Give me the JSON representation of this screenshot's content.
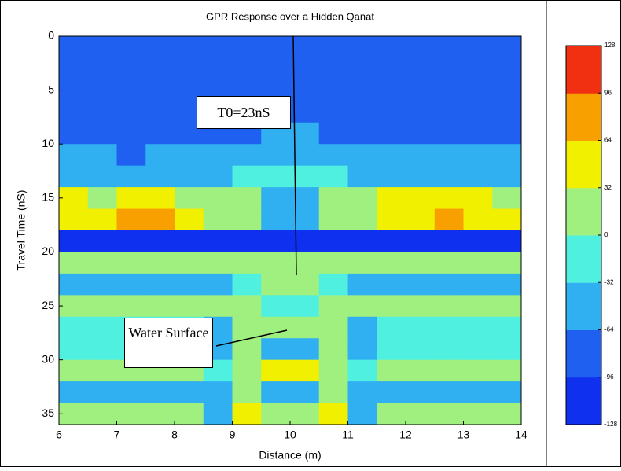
{
  "chart_data": {
    "type": "heatmap",
    "title": "GPR Response over a Hidden Qanat",
    "xlabel": "Distance (m)",
    "ylabel": "Travel Time (nS)",
    "xlim": [
      6,
      14
    ],
    "xticks": [
      6,
      7,
      8,
      9,
      10,
      11,
      12,
      13,
      14
    ],
    "ylim": [
      0,
      36
    ],
    "yticks": [
      0,
      5,
      10,
      15,
      20,
      25,
      30,
      35
    ],
    "y_inverted": true,
    "z": [
      [
        -96,
        -96,
        -96,
        -96,
        -96,
        -96,
        -96,
        -96,
        -96,
        -96,
        -96,
        -96,
        -96,
        -96,
        -96,
        -96
      ],
      [
        -96,
        -96,
        -96,
        -96,
        -96,
        -96,
        -96,
        -96,
        -96,
        -96,
        -96,
        -96,
        -96,
        -96,
        -96,
        -96
      ],
      [
        -96,
        -96,
        -96,
        -96,
        -96,
        -96,
        -96,
        -96,
        -96,
        -96,
        -96,
        -96,
        -96,
        -96,
        -96,
        -96
      ],
      [
        -96,
        -96,
        -96,
        -80,
        -96,
        -96,
        -96,
        -80,
        -80,
        -96,
        -96,
        -96,
        -96,
        -96,
        -96,
        -96
      ],
      [
        -80,
        -80,
        -80,
        -80,
        -80,
        -80,
        -80,
        -64,
        -64,
        -80,
        -80,
        -80,
        -80,
        -80,
        -80,
        -80
      ],
      [
        -64,
        -64,
        -70,
        -64,
        -64,
        -64,
        -64,
        -40,
        -40,
        -64,
        -64,
        -64,
        -64,
        -64,
        -64,
        -64
      ],
      [
        -64,
        -64,
        -64,
        -64,
        -64,
        -64,
        -32,
        -32,
        -32,
        -32,
        -64,
        -64,
        -40,
        -40,
        -64,
        -64
      ],
      [
        40,
        30,
        40,
        40,
        30,
        10,
        0,
        -64,
        -64,
        0,
        20,
        40,
        40,
        40,
        40,
        30
      ],
      [
        50,
        40,
        80,
        90,
        60,
        20,
        20,
        -40,
        -40,
        20,
        30,
        50,
        60,
        80,
        60,
        50
      ],
      [
        -100,
        -100,
        -100,
        -100,
        -100,
        -100,
        -100,
        -100,
        -100,
        -100,
        -100,
        -100,
        -100,
        -100,
        -100,
        -100
      ],
      [
        20,
        20,
        20,
        20,
        20,
        20,
        20,
        10,
        10,
        20,
        20,
        20,
        20,
        20,
        20,
        20
      ],
      [
        -64,
        -64,
        -64,
        -64,
        -64,
        -64,
        -20,
        0,
        0,
        -20,
        -64,
        -64,
        -64,
        -64,
        -64,
        -64
      ],
      [
        10,
        20,
        10,
        10,
        10,
        10,
        30,
        -32,
        -32,
        30,
        10,
        10,
        10,
        10,
        10,
        10
      ],
      [
        -32,
        -32,
        -32,
        -32,
        -32,
        -64,
        20,
        0,
        0,
        20,
        -64,
        -32,
        -32,
        -32,
        -32,
        -32
      ],
      [
        -32,
        -20,
        -32,
        -32,
        -32,
        -64,
        10,
        -40,
        -40,
        10,
        -64,
        -32,
        -32,
        -32,
        -32,
        -32
      ],
      [
        20,
        20,
        20,
        20,
        20,
        -32,
        30,
        40,
        40,
        30,
        -32,
        20,
        20,
        20,
        20,
        20
      ],
      [
        -64,
        -64,
        -64,
        -64,
        -64,
        -64,
        0,
        -64,
        -64,
        0,
        -64,
        -64,
        -64,
        -64,
        -64,
        -64
      ],
      [
        20,
        20,
        20,
        20,
        20,
        -64,
        40,
        20,
        20,
        40,
        -64,
        20,
        20,
        20,
        20,
        20
      ]
    ],
    "zlim": [
      -128,
      128
    ],
    "colorbar_ticks": [
      128,
      96,
      64,
      32,
      0,
      -32,
      -64,
      -96,
      -128
    ],
    "colors": [
      "#1030f0",
      "#2060f0",
      "#30b0f0",
      "#50f0e0",
      "#a0f080",
      "#f0f000",
      "#f8a000",
      "#f03010"
    ],
    "annotations": [
      "T0=23nS",
      "Water Surface"
    ]
  }
}
